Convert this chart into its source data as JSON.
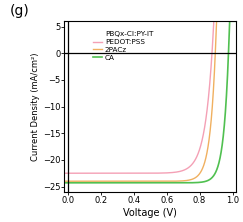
{
  "title_label": "(g)",
  "xlabel": "Voltage (V)",
  "ylabel": "Current Density (mA/cm²)",
  "xlim": [
    -0.02,
    1.02
  ],
  "ylim": [
    -26,
    6
  ],
  "yticks": [
    5,
    0,
    -5,
    -10,
    -15,
    -20,
    -25
  ],
  "xticks": [
    0.0,
    0.2,
    0.4,
    0.6,
    0.8,
    1.0
  ],
  "legend_entries": [
    "PBQx-CI:PY-IT",
    "PEDOT:PSS",
    "2PACz",
    "CA"
  ],
  "colors": {
    "PEDOT:PSS": "#f4a0b5",
    "2PACz": "#f0b060",
    "CA": "#50c050"
  },
  "voc_PEDOT": 0.875,
  "voc_2PACz": 0.895,
  "voc_CA": 0.975,
  "jsc_PEDOT": -22.5,
  "jsc_2PACz": -24.0,
  "jsc_CA": -24.3,
  "n_PEDOT": 1.8,
  "n_2PACz": 1.3,
  "n_CA": 1.2
}
